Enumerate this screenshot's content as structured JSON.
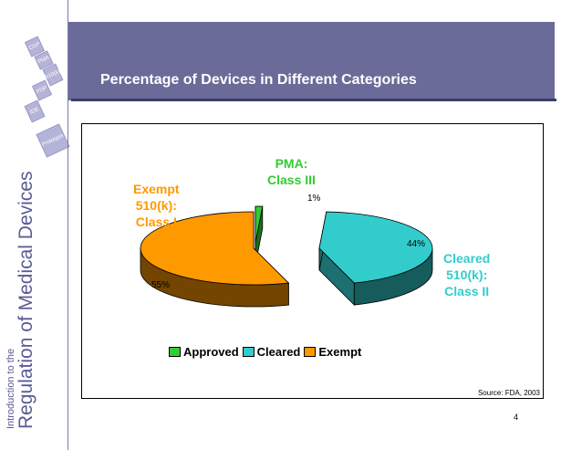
{
  "slide": {
    "title": "Percentage of Devices in Different Categories",
    "vertical_title_small": "Introduction to the",
    "vertical_title_big": "Regulation of Medical Devices",
    "source": "Source: FDA, 2003",
    "page_number": "4",
    "deco_labels": [
      "CGP",
      "PMA",
      "510(k)",
      "PDP",
      "IDE",
      "Prototype"
    ]
  },
  "colors": {
    "header": "#6b6b99",
    "approved": "#33cc33",
    "cleared": "#33cccc",
    "exempt": "#ff9900",
    "label_approved": "#33cc33",
    "label_cleared": "#33cccc",
    "label_exempt": "#ff9900"
  },
  "chart_data": {
    "type": "pie",
    "title": "",
    "slices": [
      {
        "legend": "Approved",
        "label_lines": [
          "PMA:",
          "Class III"
        ],
        "value": 1,
        "pct_label": "1%"
      },
      {
        "legend": "Cleared",
        "label_lines": [
          "Cleared",
          "510(k):",
          "Class II"
        ],
        "value": 44,
        "pct_label": "44%"
      },
      {
        "legend": "Exempt",
        "label_lines": [
          "Exempt",
          "510(k):",
          "Class I"
        ],
        "value": 55,
        "pct_label": "55%"
      }
    ],
    "legend_placement": "bottom",
    "three_d": true
  }
}
